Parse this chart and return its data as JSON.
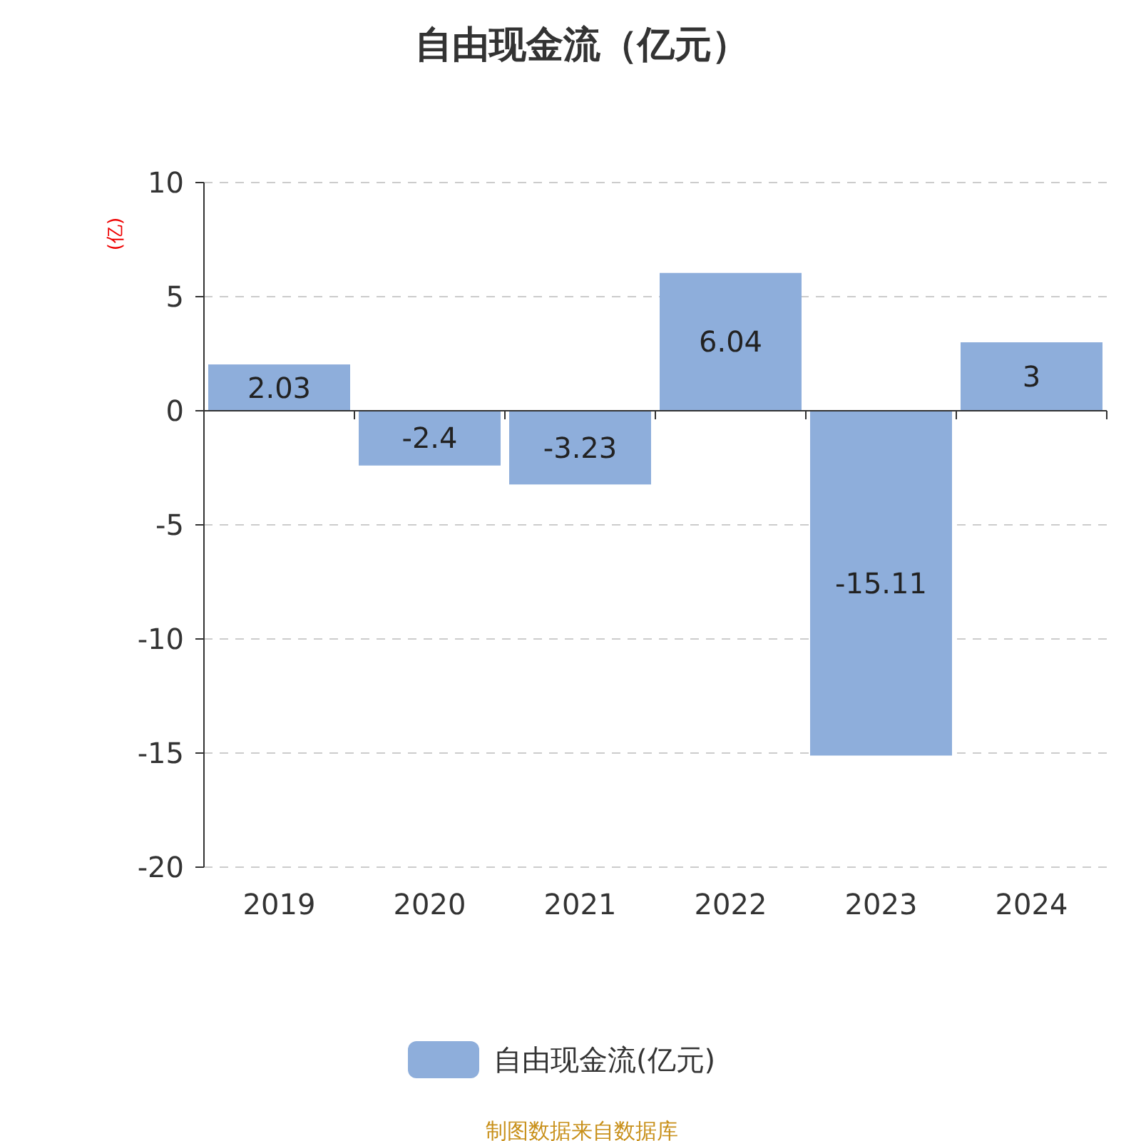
{
  "chart_data": {
    "type": "bar",
    "title": "自由现金流（亿元）",
    "ylabel": "(亿)",
    "categories": [
      "2019",
      "2020",
      "2021",
      "2022",
      "2023",
      "2024"
    ],
    "series": [
      {
        "name": "自由现金流(亿元)",
        "color": "#8eaedb",
        "values": [
          2.03,
          -2.4,
          -3.23,
          6.04,
          -15.11,
          3
        ]
      }
    ],
    "ylim": [
      -20,
      10
    ],
    "yticks": [
      -20,
      -15,
      -10,
      -5,
      0,
      5,
      10
    ],
    "grid": "y",
    "legend": "bottom",
    "data_labels": true,
    "annotations": [
      "制图数据来自数据库"
    ]
  }
}
